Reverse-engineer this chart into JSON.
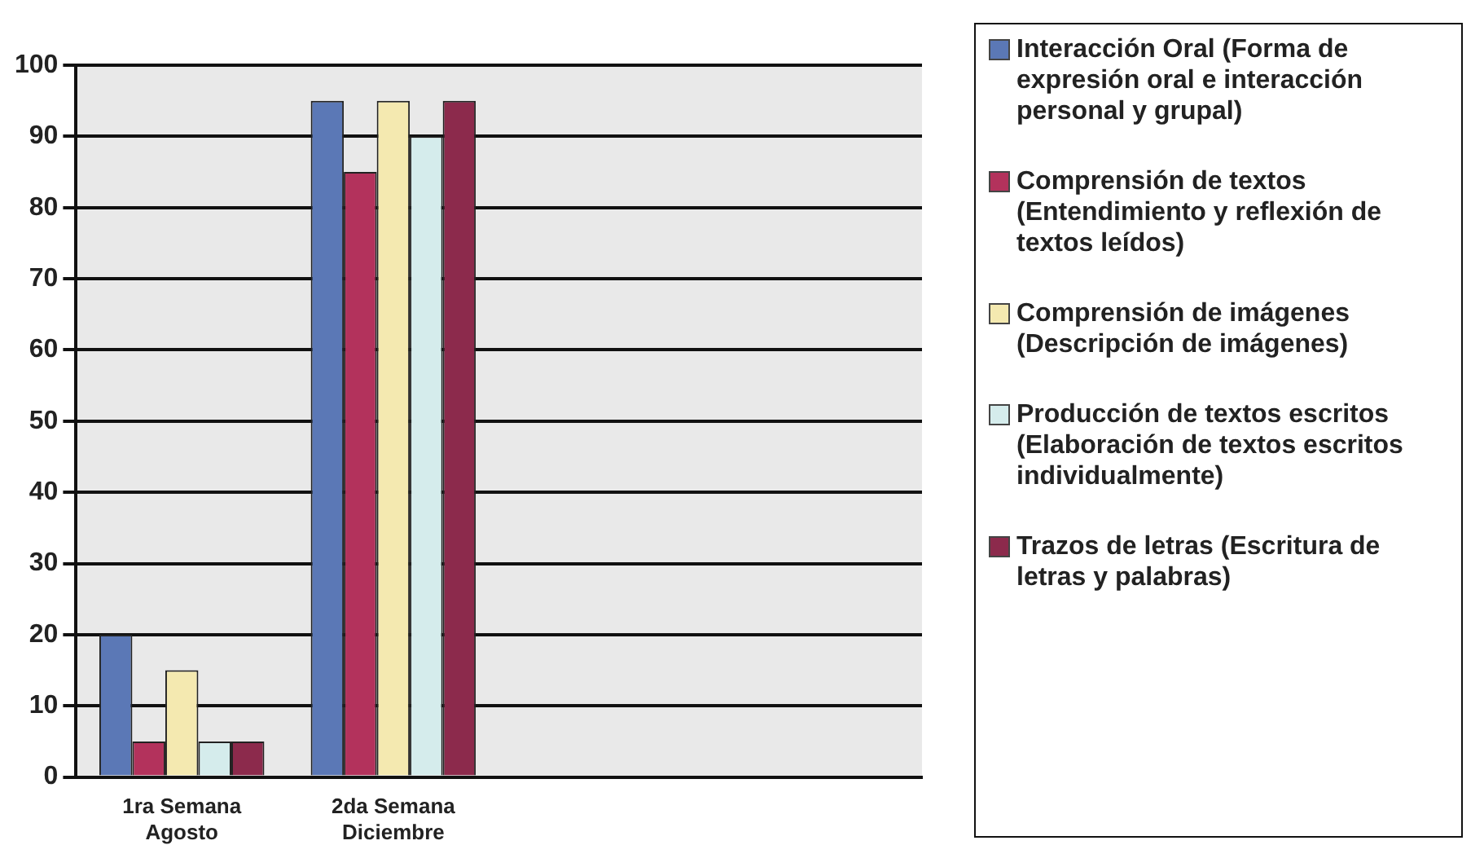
{
  "chart_data": {
    "type": "bar",
    "categories": [
      "1ra Semana\nAgosto",
      "2da Semana\nDiciembre",
      null,
      null
    ],
    "series": [
      {
        "name": "Interacción Oral (Forma de expresión oral e interacción personal y grupal)",
        "color": "#5b78b6",
        "values": [
          20,
          95,
          null,
          null
        ]
      },
      {
        "name": "Comprensión de textos (Entendimiento y reflexión de textos leídos)",
        "color": "#b3325c",
        "values": [
          5,
          85,
          null,
          null
        ]
      },
      {
        "name": "Comprensión de imágenes (Descripción de imágenes)",
        "color": "#f4e9b0",
        "values": [
          15,
          95,
          null,
          null
        ]
      },
      {
        "name": "Producción de textos escritos (Elaboración de textos escritos individualmente)",
        "color": "#d5ecec",
        "values": [
          5,
          90,
          null,
          null
        ]
      },
      {
        "name": "Trazos de letras (Escritura de letras y palabras)",
        "color": "#8c2a4c",
        "values": [
          5,
          95,
          null,
          null
        ]
      }
    ],
    "ylim": [
      0,
      100
    ],
    "yticks": [
      0,
      10,
      20,
      30,
      40,
      50,
      60,
      70,
      80,
      90,
      100
    ],
    "grid": "y",
    "legend": "right"
  }
}
